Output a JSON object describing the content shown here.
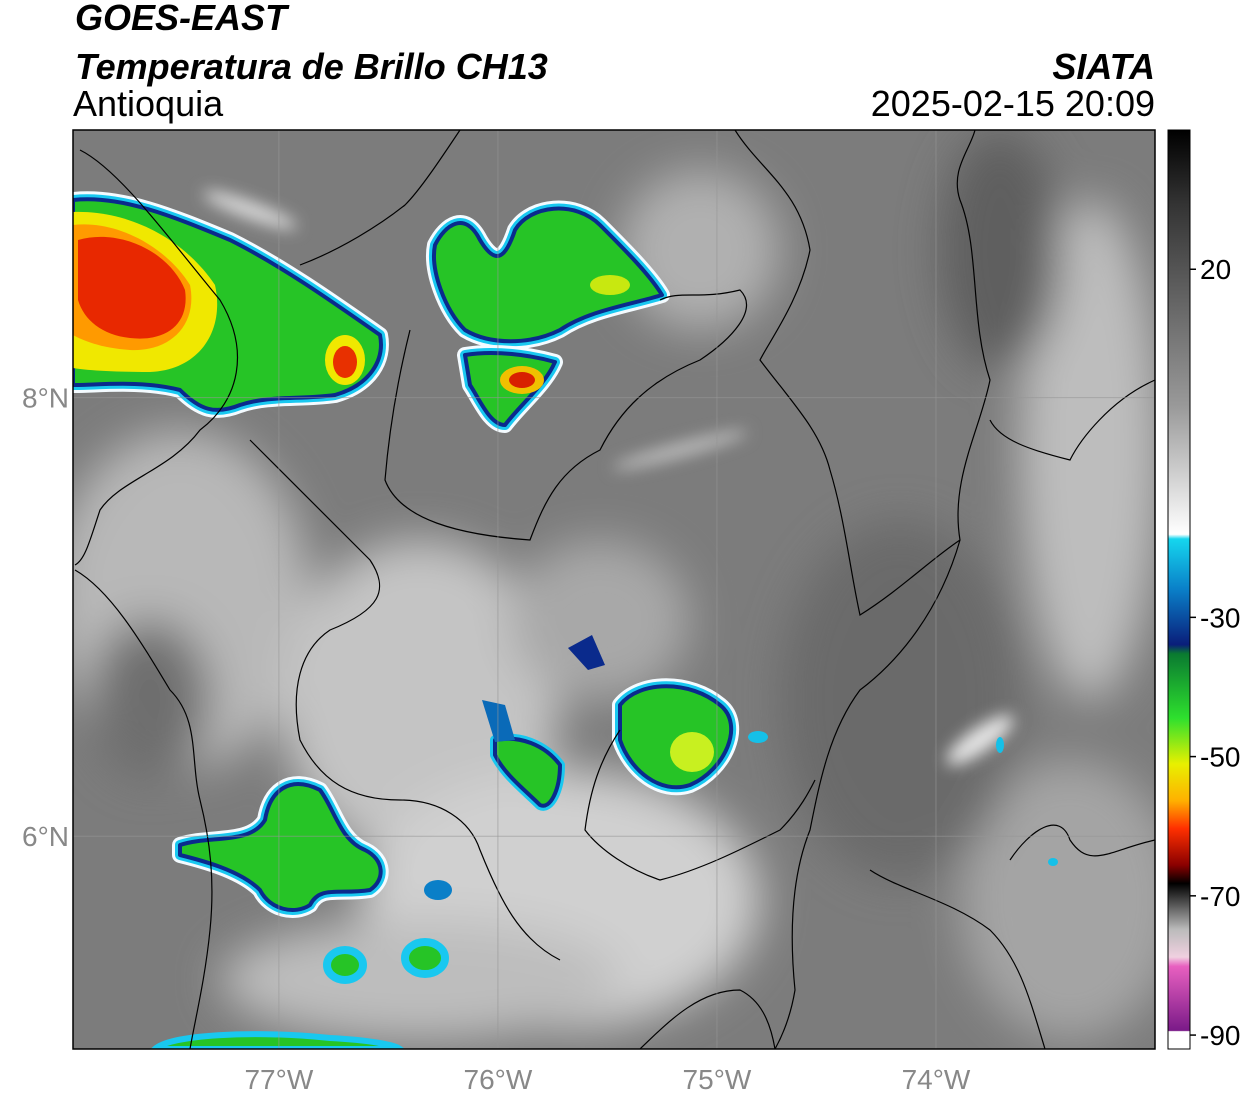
{
  "header": {
    "title": "GOES-EAST",
    "subtitle": "Temperatura de Brillo CH13",
    "region": "Antioquia",
    "source": "SIATA",
    "datetime": "2025-02-15 20:09"
  },
  "map": {
    "xlim": [
      -77.94,
      -73.0
    ],
    "ylim": [
      5.03,
      9.22
    ],
    "xticks": [
      {
        "value": -77,
        "label": "77°W"
      },
      {
        "value": -76,
        "label": "76°W"
      },
      {
        "value": -75,
        "label": "75°W"
      },
      {
        "value": -74,
        "label": "74°W"
      }
    ],
    "yticks": [
      {
        "value": 6,
        "label": "6°N"
      },
      {
        "value": 8,
        "label": "8°N"
      }
    ],
    "grid": true
  },
  "colorbar": {
    "lim": [
      -92,
      40
    ],
    "ticks": [
      20,
      -30,
      -50,
      -70,
      -90
    ]
  }
}
